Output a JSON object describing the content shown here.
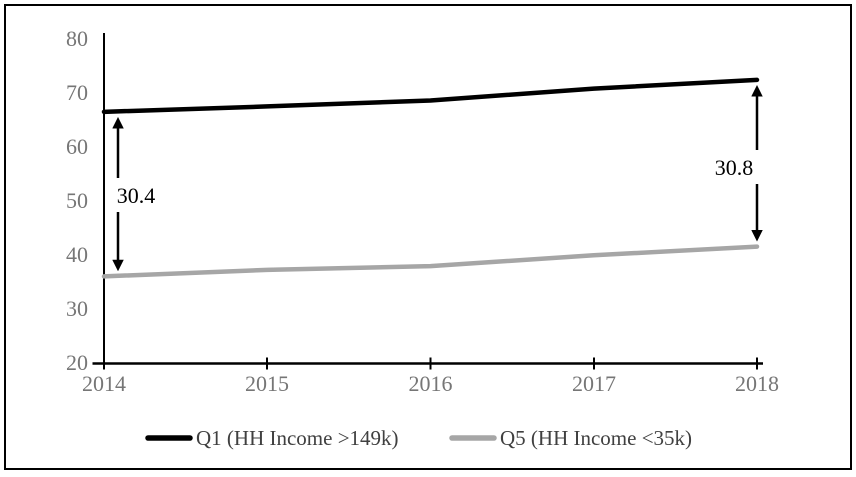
{
  "chart_data": {
    "type": "line",
    "title": "",
    "x": [
      2014,
      2015,
      2016,
      2017,
      2018
    ],
    "x_tick_labels": [
      "2014",
      "2015",
      "2016",
      "2017",
      "2018"
    ],
    "y_tick_labels": [
      "80",
      "70",
      "60",
      "50",
      "40",
      "30",
      "20"
    ],
    "yticks": [
      80,
      70,
      60,
      50,
      40,
      30,
      20
    ],
    "ylim": [
      20,
      80
    ],
    "grid": false,
    "legend_position": "bottom-center",
    "series": [
      {
        "name": "Q1 (HH Income >149k)",
        "color": "#000000",
        "values": [
          66.5,
          67.5,
          68.6,
          70.8,
          72.4
        ]
      },
      {
        "name": "Q5 (HH Income <35k)",
        "color": "#a6a6a6",
        "values": [
          36.1,
          37.3,
          38.0,
          40.0,
          41.6
        ]
      }
    ],
    "annotations": [
      {
        "x": 2014,
        "label": "30.4",
        "from": 36.1,
        "to": 66.5
      },
      {
        "x": 2018,
        "label": "30.8",
        "from": 41.6,
        "to": 72.4
      }
    ]
  },
  "colors": {
    "q1_line": "#000000",
    "q5_line": "#a6a6a6",
    "axis_line": "#000000",
    "axis_text": "#767676",
    "legend_text": "#404040",
    "annotation_text": "#000000",
    "border": "#000000",
    "background": "#ffffff"
  }
}
